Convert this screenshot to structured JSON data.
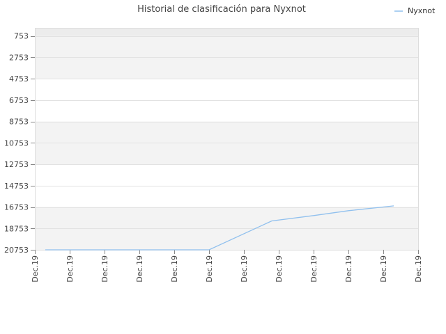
{
  "chart_data": {
    "type": "line",
    "title": "Historial de clasificación para Nyxnot",
    "xlabel": "",
    "ylabel": "",
    "y_inverted": true,
    "ylim": [
      0,
      20753
    ],
    "y_ticks": [
      753,
      2753,
      4753,
      6753,
      8753,
      10753,
      12753,
      14753,
      16753,
      18753,
      20753
    ],
    "x_tick_labels": [
      "Dec.19",
      "Dec.19",
      "Dec.19",
      "Dec.19",
      "Dec.19",
      "Dec.19",
      "Dec.19",
      "Dec.19",
      "Dec.19",
      "Dec.19",
      "Dec.19",
      "Dec.19"
    ],
    "x_range": [
      0,
      11
    ],
    "grid": true,
    "alternating_bands": true,
    "legend_position": "top-right",
    "series": [
      {
        "name": "Nyxnot",
        "color": "#90c0ee",
        "x": [
          0.3,
          1.0,
          2.0,
          3.0,
          4.0,
          5.0,
          6.8,
          8.0,
          9.0,
          10.3
        ],
        "y": [
          20753,
          20753,
          20753,
          20753,
          20753,
          20753,
          18050,
          17550,
          17100,
          16650
        ]
      }
    ]
  }
}
